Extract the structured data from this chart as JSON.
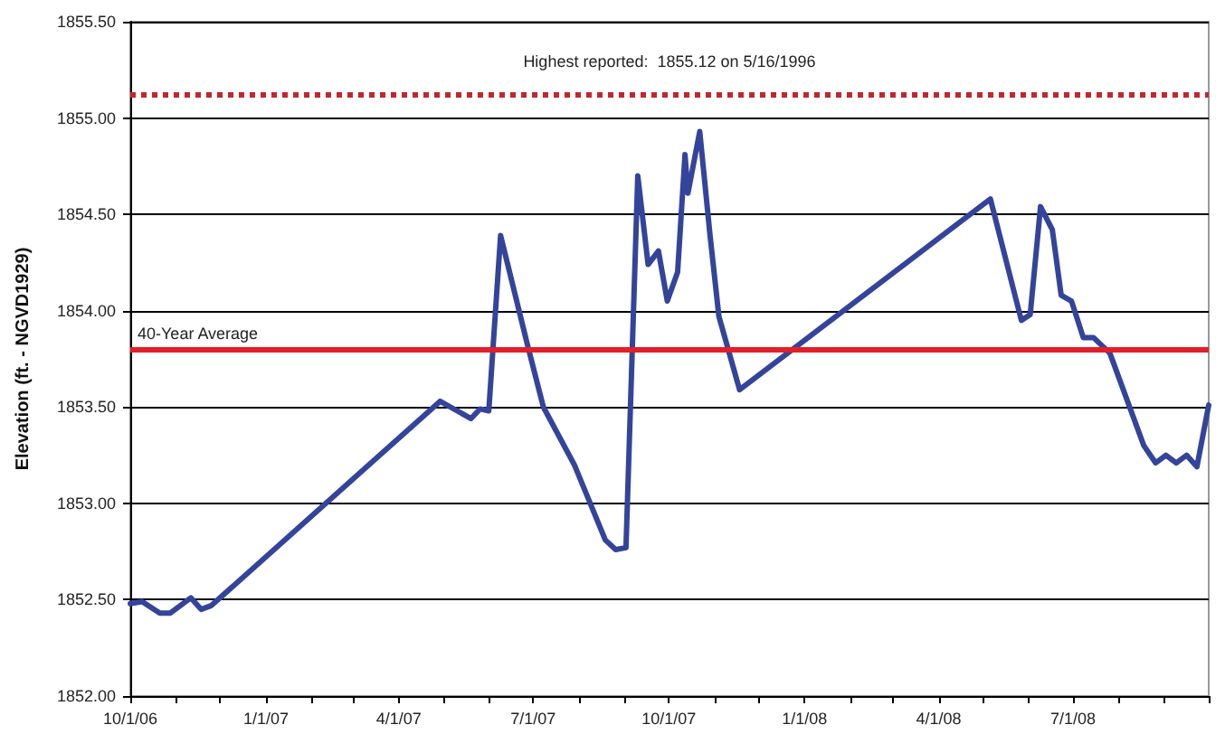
{
  "chart_data": {
    "type": "line",
    "ylabel": "Elevation (ft. - NGVD1929)",
    "x": [
      "2006-10-01",
      "2006-10-09",
      "2006-10-21",
      "2006-10-28",
      "2006-11-11",
      "2006-11-18",
      "2006-11-25",
      "2007-04-29",
      "2007-05-20",
      "2007-05-26",
      "2007-06-01",
      "2007-06-09",
      "2007-06-27",
      "2007-07-08",
      "2007-07-29",
      "2007-08-19",
      "2007-08-26",
      "2007-09-02",
      "2007-09-10",
      "2007-09-17",
      "2007-09-24",
      "2007-09-30",
      "2007-10-07",
      "2007-10-12",
      "2007-10-14",
      "2007-10-22",
      "2007-10-29",
      "2007-11-04",
      "2007-11-18",
      "2008-05-06",
      "2008-05-27",
      "2008-06-02",
      "2008-06-09",
      "2008-06-17",
      "2008-06-23",
      "2008-06-30",
      "2008-07-08",
      "2008-07-15",
      "2008-07-26",
      "2008-08-18",
      "2008-08-26",
      "2008-09-02",
      "2008-09-09",
      "2008-09-16",
      "2008-09-23",
      "2008-10-01"
    ],
    "series": [
      {
        "color": "#34449b",
        "values": [
          1852.48,
          1852.49,
          1852.43,
          1852.43,
          1852.51,
          1852.45,
          1852.47,
          1853.53,
          1853.44,
          1853.49,
          1853.48,
          1854.39,
          1853.83,
          1853.5,
          1853.2,
          1852.81,
          1852.76,
          1852.77,
          1854.7,
          1854.24,
          1854.31,
          1854.05,
          1854.2,
          1854.81,
          1854.61,
          1854.93,
          1854.39,
          1853.97,
          1853.59,
          1854.58,
          1853.95,
          1853.98,
          1854.54,
          1854.42,
          1854.08,
          1854.05,
          1853.86,
          1853.86,
          1853.78,
          1853.3,
          1853.21,
          1853.25,
          1853.21,
          1853.25,
          1853.19,
          1853.51
        ]
      }
    ],
    "xlim": [
      "2006-10-01",
      "2008-10-01"
    ],
    "xticks": [
      {
        "value": "2006-10-01",
        "label": "10/1/06"
      },
      {
        "value": "2006-11-01",
        "label": null
      },
      {
        "value": "2006-12-01",
        "label": null
      },
      {
        "value": "2007-01-01",
        "label": "1/1/07"
      },
      {
        "value": "2007-02-01",
        "label": null
      },
      {
        "value": "2007-03-01",
        "label": null
      },
      {
        "value": "2007-04-01",
        "label": "4/1/07"
      },
      {
        "value": "2007-05-01",
        "label": null
      },
      {
        "value": "2007-06-01",
        "label": null
      },
      {
        "value": "2007-07-01",
        "label": "7/1/07"
      },
      {
        "value": "2007-08-01",
        "label": null
      },
      {
        "value": "2007-09-01",
        "label": null
      },
      {
        "value": "2007-10-01",
        "label": "10/1/07"
      },
      {
        "value": "2007-11-01",
        "label": null
      },
      {
        "value": "2007-12-01",
        "label": null
      },
      {
        "value": "2008-01-01",
        "label": "1/1/08"
      },
      {
        "value": "2008-02-01",
        "label": null
      },
      {
        "value": "2008-03-01",
        "label": null
      },
      {
        "value": "2008-04-01",
        "label": "4/1/08"
      },
      {
        "value": "2008-05-01",
        "label": null
      },
      {
        "value": "2008-06-01",
        "label": null
      },
      {
        "value": "2008-07-01",
        "label": "7/1/08"
      },
      {
        "value": "2008-08-01",
        "label": null
      },
      {
        "value": "2008-09-01",
        "label": null
      },
      {
        "value": "2008-10-01",
        "label": null
      }
    ],
    "ylim": [
      1852,
      1855.5
    ],
    "yticks": [
      {
        "value": 1852,
        "label": "1852.00"
      },
      {
        "value": 1852.5,
        "label": "1852.50"
      },
      {
        "value": 1853,
        "label": "1853.00"
      },
      {
        "value": 1853.5,
        "label": "1853.50"
      },
      {
        "value": 1854,
        "label": "1854.00"
      },
      {
        "value": 1854.5,
        "label": "1854.50"
      },
      {
        "value": 1855,
        "label": "1855.00"
      },
      {
        "value": 1855.5,
        "label": "1855.50"
      }
    ],
    "ref_lines": [
      {
        "axis": "y",
        "value": 1855.12,
        "label": "Highest reported:  1855.12 on 5/16/1996",
        "color": "#c0272d",
        "line_style": "dotted"
      },
      {
        "axis": "y",
        "value": 1853.8,
        "label": "40-Year Average",
        "color": "#e0202a",
        "line_style": "solid"
      }
    ],
    "grid": "y",
    "marker": "none",
    "line_style": "solid"
  }
}
